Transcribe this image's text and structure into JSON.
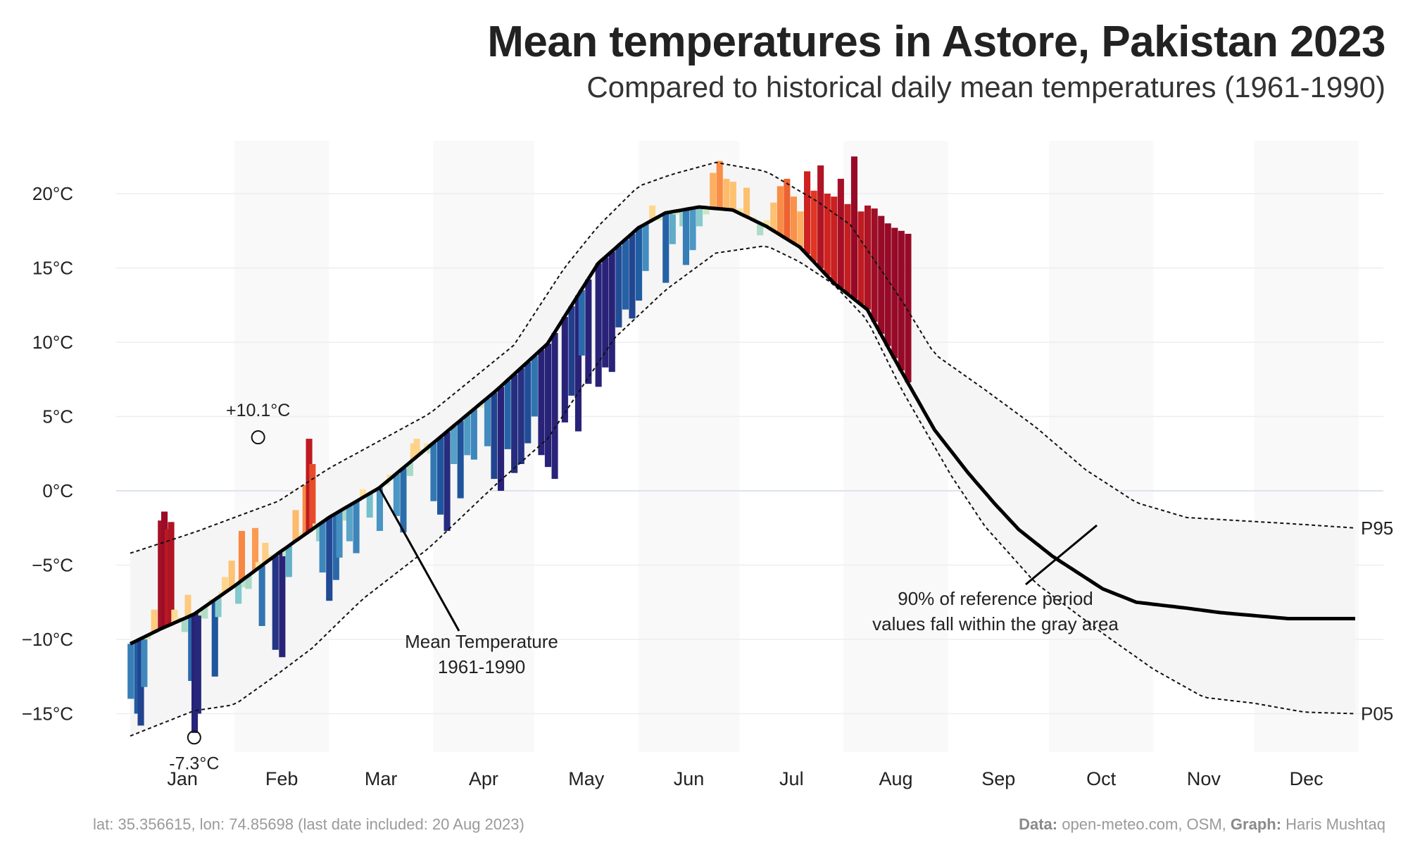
{
  "title": "Mean temperatures in Astore, Pakistan 2023",
  "subtitle": "Compared to historical daily mean temperatures (1961-1990)",
  "footer": {
    "location": "lat: 35.356615, lon: 74.85698 (last date included: 20 Aug 2023)",
    "data_label": "Data:",
    "data_value": "open-meteo.com, OSM,",
    "graph_label": "Graph:",
    "graph_value": "Haris Mushtaq"
  },
  "chart_data": {
    "type": "area",
    "ylim": [
      -17,
      23
    ],
    "y_ticks": [
      20,
      15,
      10,
      5,
      0,
      -5,
      -10,
      -15
    ],
    "y_tick_labels": [
      "20°C",
      "15°C",
      "10°C",
      "5°C",
      "0°C",
      "−5°C",
      "−10°C",
      "−15°C"
    ],
    "months": [
      "Jan",
      "Feb",
      "Mar",
      "Apr",
      "May",
      "Jun",
      "Jul",
      "Aug",
      "Sep",
      "Oct",
      "Nov",
      "Dec"
    ],
    "grid": true,
    "mean_1961_1990": {
      "name": "Mean Temperature 1961-1990",
      "day": [
        1,
        10,
        20,
        32,
        45,
        55,
        60,
        75,
        92,
        110,
        125,
        140,
        152,
        160,
        170,
        180,
        190,
        200,
        205,
        210,
        220,
        230,
        240,
        250,
        258,
        265,
        275,
        290,
        300,
        315,
        325,
        335,
        345,
        365
      ],
      "value": [
        -10.3,
        -9.3,
        -8.3,
        -6.4,
        -4.2,
        -2.6,
        -1.8,
        0.2,
        3.4,
        6.8,
        9.9,
        15.3,
        17.7,
        18.7,
        19.1,
        18.9,
        17.8,
        16.4,
        15.2,
        14.0,
        12.2,
        8.1,
        4.1,
        1.2,
        -0.9,
        -2.6,
        -4.4,
        -6.6,
        -7.5,
        -7.9,
        -8.2,
        -8.4,
        -8.6,
        -8.6
      ]
    },
    "p95": {
      "name": "P95",
      "day": [
        1,
        20,
        45,
        60,
        90,
        115,
        130,
        140,
        152,
        162,
        175,
        190,
        205,
        215,
        230,
        240,
        255,
        270,
        285,
        300,
        315,
        330,
        345,
        365
      ],
      "value": [
        -4.2,
        -2.8,
        -0.7,
        1.5,
        5.2,
        9.8,
        15.0,
        17.8,
        20.5,
        21.3,
        22.1,
        21.5,
        19.5,
        17.9,
        12.9,
        9.2,
        6.8,
        4.3,
        1.4,
        -0.8,
        -1.8,
        -2.0,
        -2.2,
        -2.5
      ]
    },
    "p05": {
      "name": "P05",
      "day": [
        1,
        20,
        32,
        45,
        55,
        70,
        90,
        110,
        125,
        145,
        160,
        175,
        190,
        200,
        210,
        220,
        230,
        245,
        255,
        270,
        290,
        305,
        320,
        335,
        350,
        365
      ],
      "value": [
        -16.5,
        -14.8,
        -14.4,
        -12.3,
        -10.6,
        -7.3,
        -3.8,
        0.5,
        3.5,
        10.3,
        13.5,
        16.0,
        16.5,
        15.4,
        13.9,
        11.5,
        6.9,
        1.0,
        -2.4,
        -6.2,
        -9.6,
        -12.0,
        -13.9,
        -14.3,
        -14.9,
        -15.0
      ]
    },
    "observed_2023": {
      "day": [
        1,
        3,
        4,
        5,
        6,
        8,
        10,
        11,
        12,
        13,
        14,
        15,
        17,
        18,
        19,
        20,
        21,
        22,
        23,
        25,
        26,
        27,
        28,
        29,
        31,
        33,
        34,
        35,
        36,
        37,
        38,
        39,
        40,
        41,
        43,
        44,
        46,
        47,
        48,
        50,
        52,
        53,
        54,
        55,
        56,
        57,
        58,
        60,
        62,
        63,
        65,
        66,
        68,
        70,
        72,
        74,
        75,
        77,
        78,
        80,
        82,
        84,
        85,
        86,
        88,
        89,
        90,
        91,
        93,
        95,
        97,
        99,
        101,
        103,
        105,
        107,
        109,
        111,
        113,
        115,
        117,
        119,
        121,
        123,
        125,
        127,
        130,
        132,
        134,
        135,
        137,
        140,
        142,
        144,
        146,
        148,
        150,
        152,
        154,
        156,
        158,
        160,
        162,
        163,
        165,
        166,
        168,
        170,
        172,
        174,
        176,
        178,
        180,
        182,
        184,
        186,
        188,
        190,
        192,
        194,
        196,
        198,
        200,
        202,
        204,
        206,
        208,
        210,
        212,
        214,
        216,
        218,
        220,
        222,
        224,
        226,
        228,
        230,
        232
      ],
      "value": [
        -14.0,
        -15.0,
        -15.8,
        -13.2,
        -10.0,
        -8.0,
        -2.0,
        -1.4,
        -2.6,
        -2.1,
        -8.0,
        -8.5,
        -9.5,
        -7.0,
        -12.8,
        -16.3,
        -15.0,
        -8.4,
        -8.6,
        -7.3,
        -12.5,
        -8.5,
        -6.8,
        -5.8,
        -4.7,
        -7.6,
        -2.7,
        -6.5,
        -6.6,
        -5.6,
        -2.5,
        -4.8,
        -9.1,
        -3.5,
        -4.3,
        -10.7,
        -11.2,
        -4.4,
        -5.8,
        -1.3,
        -2.8,
        0.4,
        3.5,
        1.8,
        -2.2,
        -3.4,
        -5.5,
        -7.4,
        -6.0,
        -4.5,
        -2.0,
        -3.4,
        -4.2,
        0.1,
        -1.8,
        0.1,
        -2.7,
        0.4,
        1.1,
        -1.7,
        -2.8,
        1.0,
        3.2,
        3.5,
        2.8,
        3.2,
        2.5,
        -0.7,
        -1.6,
        -2.7,
        1.8,
        -0.5,
        2.4,
        2.1,
        5.6,
        3.0,
        0.8,
        0.0,
        2.8,
        1.2,
        1.8,
        3.2,
        5.0,
        2.4,
        1.6,
        0.8,
        4.6,
        6.4,
        4.0,
        9.1,
        7.2,
        7.0,
        8.3,
        8.0,
        11.0,
        12.2,
        11.6,
        12.8,
        14.8,
        19.2,
        18.2,
        14.0,
        16.6,
        18.6,
        17.8,
        15.2,
        16.2,
        17.8,
        18.6,
        21.4,
        22.2,
        21.0,
        20.8,
        19.0,
        20.4,
        18.4,
        17.2,
        18.2,
        19.4,
        20.5,
        21.0,
        19.8,
        18.8,
        21.5,
        20.2,
        21.9,
        20.0,
        19.8,
        21.0,
        19.3,
        22.5,
        18.8,
        19.2,
        19.0,
        18.5,
        18.0,
        17.7,
        17.5,
        17.3
      ]
    },
    "annotations": {
      "max_label": "+10.1°C",
      "max_day": 39,
      "max_value": 3.6,
      "min_label": "-7.3°C",
      "min_day": 20,
      "min_value": -16.6,
      "mean_line_label": [
        "Mean Temperature",
        "1961-1990"
      ],
      "band_label": [
        "90% of reference period",
        "values fall within the gray area"
      ],
      "p95_label": "P95",
      "p05_label": "P05"
    }
  }
}
